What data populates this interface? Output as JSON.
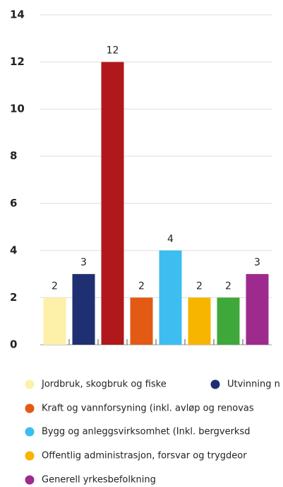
{
  "chart_data": {
    "type": "bar",
    "categories": [
      null,
      null,
      null,
      null,
      null,
      null,
      null,
      null
    ],
    "values": [
      2,
      3,
      12,
      2,
      4,
      2,
      2,
      3
    ],
    "colors": [
      "#fdf0a8",
      "#1f3072",
      "#b0181b",
      "#e35a14",
      "#3dbdf0",
      "#f7b500",
      "#3fa83a",
      "#9e2a8e"
    ],
    "ylim": [
      0,
      14
    ],
    "yticks": [
      0,
      2,
      4,
      6,
      8,
      10,
      12,
      14
    ],
    "grid": true,
    "legend": [
      {
        "name": "Jordbruk, skogbruk og fiske",
        "color": "#fdf0a8"
      },
      {
        "name": "Utvinning n",
        "color": "#1f3072"
      },
      {
        "name": "Kraft og vannforsyning (inkl. avløp og renovas",
        "color": "#e35a14"
      },
      {
        "name": "Bygg og anleggsvirksomhet (Inkl. bergverksd",
        "color": "#3dbdf0"
      },
      {
        "name": "Offentlig administrasjon, forsvar og trygdeor",
        "color": "#f7b500"
      },
      {
        "name": "Generell yrkesbefolkning",
        "color": "#9e2a8e"
      }
    ]
  }
}
